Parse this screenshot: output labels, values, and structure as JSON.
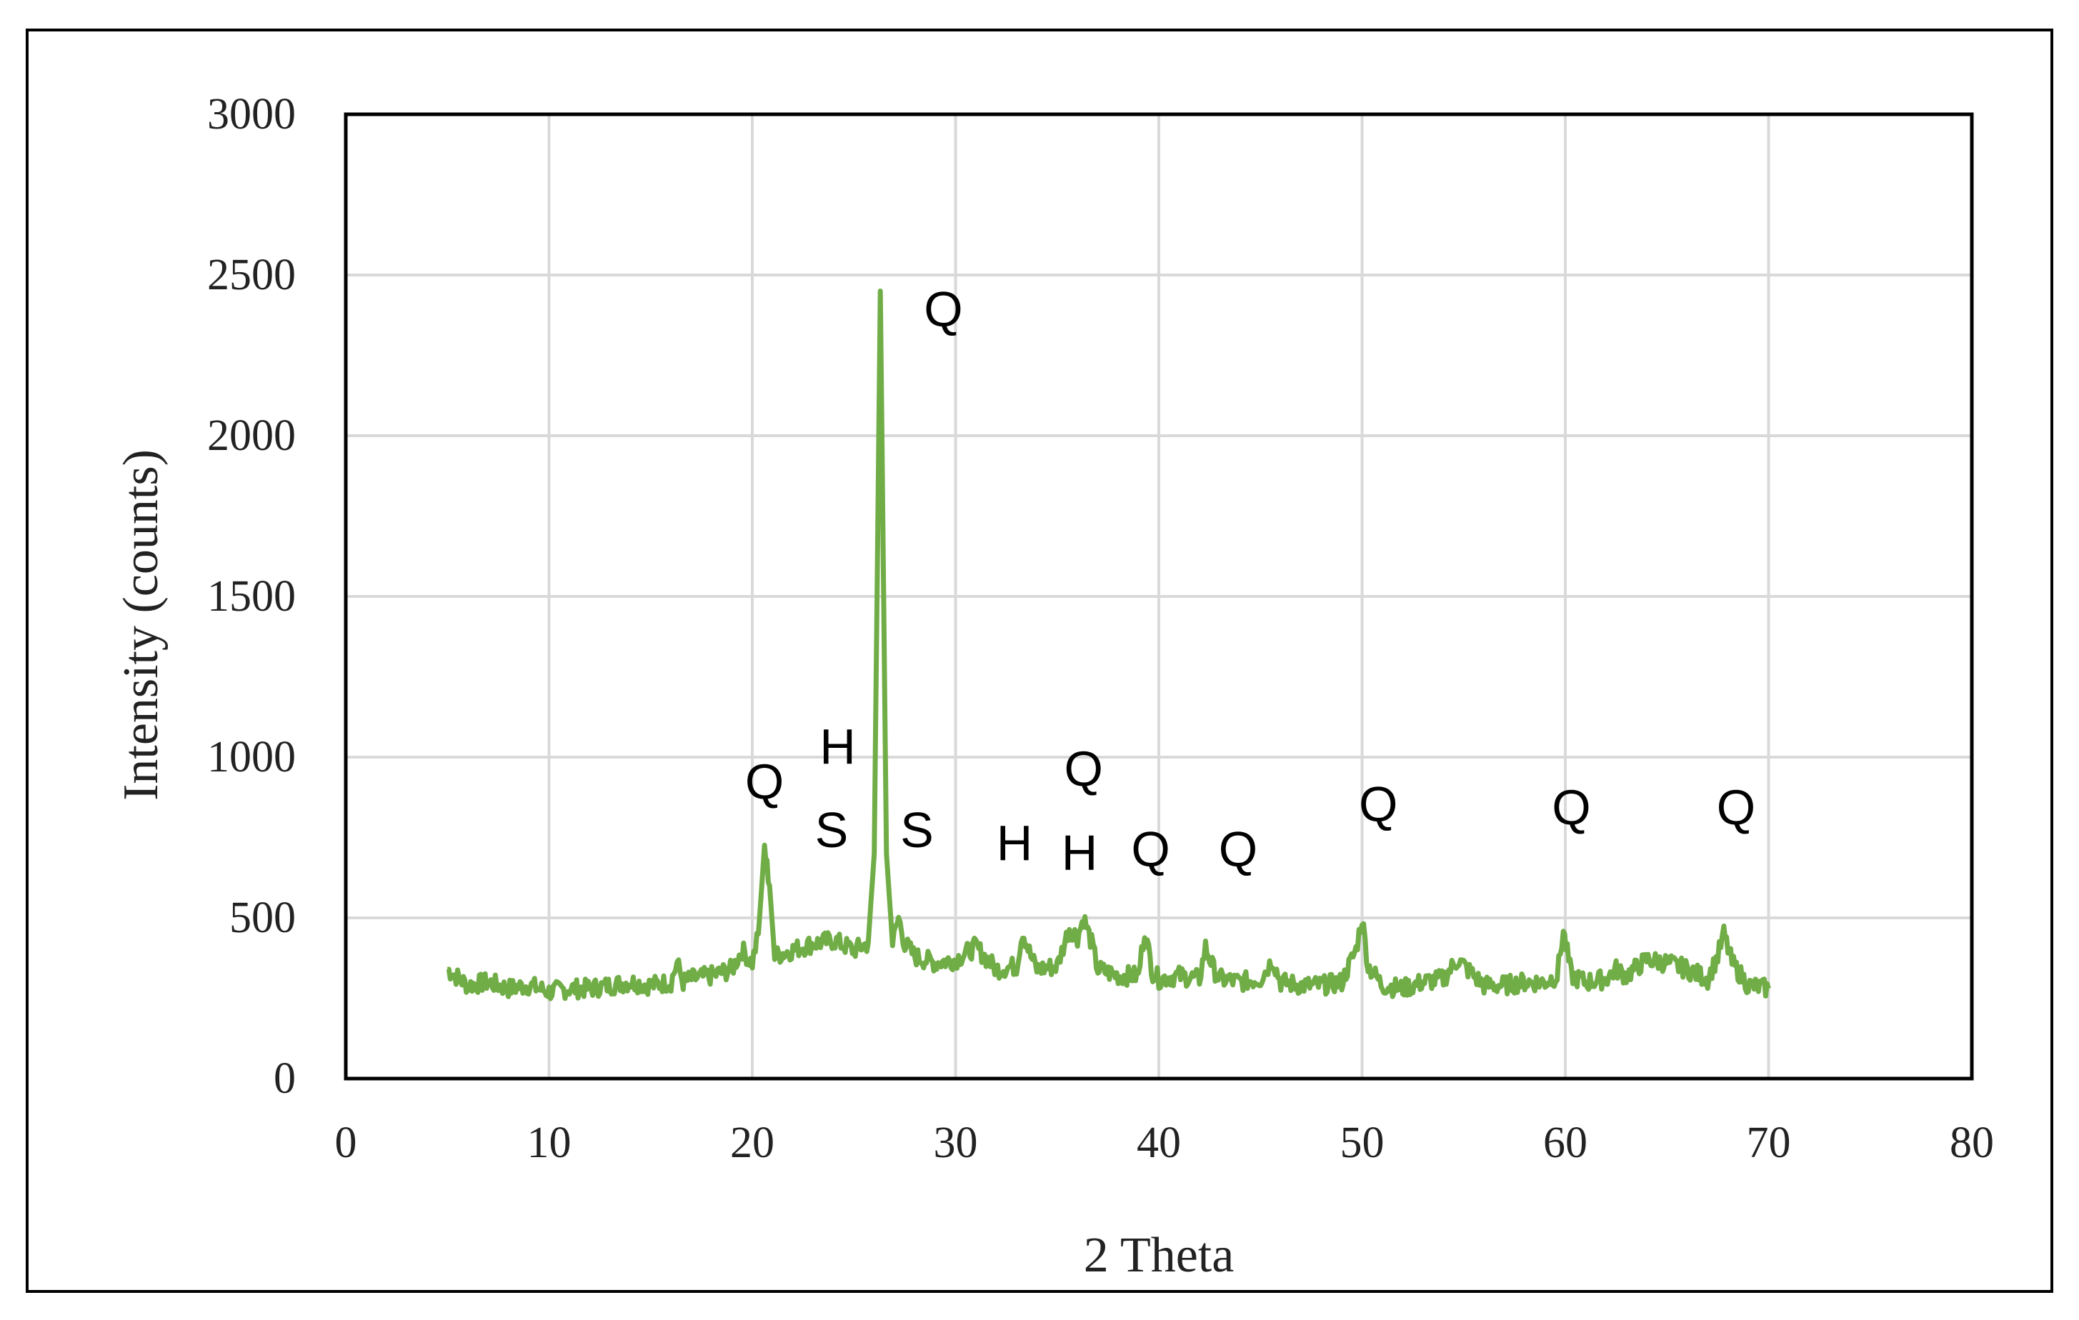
{
  "chart_data": {
    "type": "line",
    "title": "",
    "xlabel": "2 Theta",
    "ylabel": "Intensity (counts)",
    "xlim": [
      0,
      80
    ],
    "ylim": [
      0,
      3000
    ],
    "xticks": [
      0,
      10,
      20,
      30,
      40,
      50,
      60,
      70,
      80
    ],
    "yticks": [
      0,
      500,
      1000,
      1500,
      2000,
      2500,
      3000
    ],
    "grid": true,
    "legend": "none",
    "series": [
      {
        "color": "#70ad47",
        "x": [
          5,
          6,
          7,
          8,
          9,
          10,
          11,
          12,
          13,
          14,
          15,
          16,
          16.3,
          16.6,
          17,
          18,
          19,
          19.5,
          20,
          20.3,
          20.6,
          20.85,
          21.1,
          21.5,
          22,
          23,
          24,
          25,
          25.7,
          26,
          26.3,
          26.6,
          26.9,
          27.2,
          27.5,
          28,
          29,
          30,
          31,
          32,
          33,
          33.3,
          33.7,
          34,
          35,
          35.6,
          36,
          36.3,
          36.7,
          37,
          38,
          39,
          39.3,
          39.7,
          40,
          41,
          42,
          42.3,
          42.7,
          43,
          44,
          45,
          45.6,
          46,
          47,
          48,
          49,
          49.7,
          50,
          50.3,
          51,
          52,
          53,
          54,
          54.7,
          55.5,
          56,
          57,
          58,
          59,
          59.6,
          59.9,
          60.3,
          61,
          62,
          62.5,
          63,
          64,
          65,
          66,
          67,
          67.5,
          67.8,
          68.2,
          69,
          70
        ],
        "y": [
          340,
          290,
          300,
          280,
          290,
          270,
          280,
          280,
          290,
          300,
          290,
          300,
          360,
          300,
          310,
          320,
          340,
          400,
          360,
          450,
          720,
          600,
          380,
          390,
          400,
          420,
          430,
          400,
          420,
          700,
          2450,
          700,
          420,
          500,
          420,
          380,
          360,
          370,
          410,
          340,
          350,
          460,
          380,
          340,
          350,
          470,
          440,
          500,
          420,
          340,
          320,
          320,
          460,
          330,
          310,
          320,
          310,
          410,
          340,
          310,
          300,
          310,
          370,
          300,
          290,
          290,
          300,
          400,
          500,
          350,
          290,
          280,
          300,
          310,
          370,
          320,
          290,
          290,
          300,
          300,
          320,
          460,
          320,
          300,
          310,
          340,
          320,
          370,
          360,
          340,
          310,
          380,
          450,
          360,
          290,
          280
        ]
      }
    ],
    "annotations": [
      {
        "text": "Q",
        "x": 20.6,
        "y": 870
      },
      {
        "text": "H",
        "x": 24.2,
        "y": 980
      },
      {
        "text": "S",
        "x": 23.9,
        "y": 720
      },
      {
        "text": "Q",
        "x": 29.4,
        "y": 2340
      },
      {
        "text": "S",
        "x": 28.1,
        "y": 720
      },
      {
        "text": "H",
        "x": 32.9,
        "y": 680
      },
      {
        "text": "Q",
        "x": 36.3,
        "y": 910
      },
      {
        "text": "H",
        "x": 36.1,
        "y": 650
      },
      {
        "text": "Q",
        "x": 39.6,
        "y": 660
      },
      {
        "text": "Q",
        "x": 43.9,
        "y": 660
      },
      {
        "text": "Q",
        "x": 50.8,
        "y": 800
      },
      {
        "text": "Q",
        "x": 60.3,
        "y": 790
      },
      {
        "text": "Q",
        "x": 68.4,
        "y": 790
      }
    ]
  }
}
